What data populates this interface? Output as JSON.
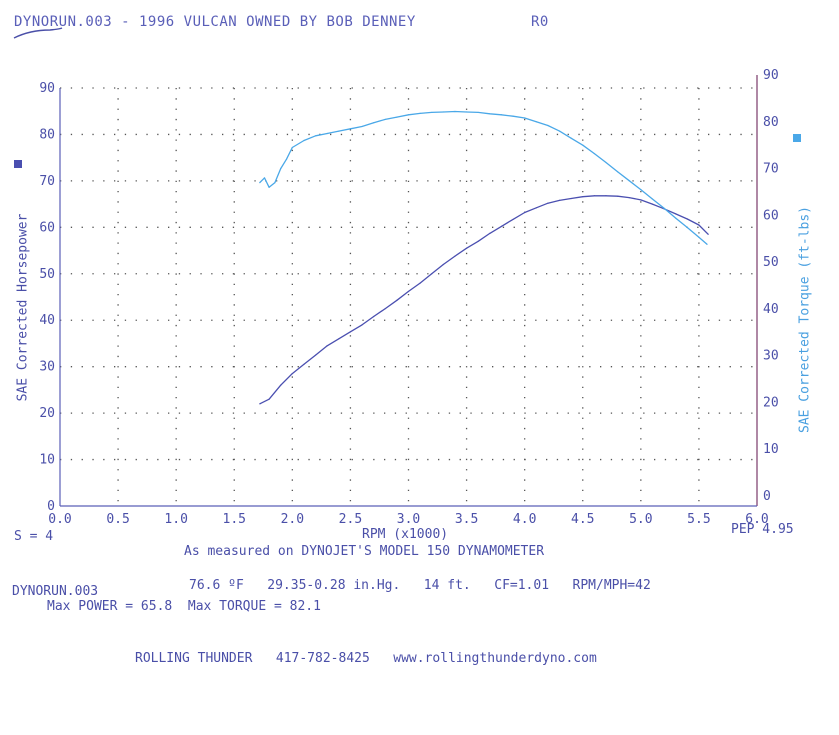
{
  "header": {
    "title": "DYNORUN.003 - 1996 VULCAN OWNED BY BOB DENNEY",
    "code": "R0"
  },
  "footer": {
    "smoothing": "S = 4",
    "pep": "PEP 4.95",
    "measured_note": "As measured on DYNOJET'S MODEL 150 DYNAMOMETER",
    "run_file": "DYNORUN.003",
    "conditions": "76.6 ºF   29.35-0.28 in.Hg.   14 ft.   CF=1.01   RPM/MPH=42",
    "max_line": "Max POWER = 65.8  Max TORQUE = 82.1",
    "shop": "ROLLING THUNDER   417-782-8425   www.rollingthunderdyno.com"
  },
  "colors": {
    "power": "#4a4fb0",
    "torque": "#4aa8e8",
    "text": "#4a4fa8",
    "grid": "#555555"
  },
  "chart_data": {
    "type": "line",
    "title": "",
    "xlabel": "RPM (x1000)",
    "ylabel_left": "SAE Corrected Horsepower",
    "ylabel_right": "SAE Corrected Torque (ft-lbs)",
    "xlim": [
      0,
      6
    ],
    "ylim_left": [
      0,
      90
    ],
    "ylim_right": [
      0,
      90
    ],
    "x_ticks": [
      "0.0",
      "0.5",
      "1.0",
      "1.5",
      "2.0",
      "2.5",
      "3.0",
      "3.5",
      "4.0",
      "4.5",
      "5.0",
      "5.5",
      "6.0"
    ],
    "y_ticks": [
      "0",
      "10",
      "20",
      "30",
      "40",
      "50",
      "60",
      "70",
      "80",
      "90"
    ],
    "grid": true,
    "series": [
      {
        "key": "power",
        "axis": "left",
        "x": [
          1.72,
          1.8,
          1.9,
          2.0,
          2.1,
          2.2,
          2.3,
          2.4,
          2.5,
          2.6,
          2.7,
          2.8,
          2.9,
          3.0,
          3.1,
          3.2,
          3.3,
          3.4,
          3.5,
          3.6,
          3.7,
          3.8,
          3.9,
          4.0,
          4.1,
          4.2,
          4.3,
          4.4,
          4.5,
          4.6,
          4.7,
          4.8,
          4.9,
          5.0,
          5.1,
          5.2,
          5.3,
          5.4,
          5.5,
          5.58
        ],
        "y": [
          22.0,
          23.0,
          26.0,
          28.5,
          30.5,
          32.5,
          34.5,
          36.0,
          37.5,
          39.0,
          40.8,
          42.5,
          44.3,
          46.2,
          48.0,
          50.0,
          52.0,
          53.8,
          55.5,
          57.0,
          58.7,
          60.2,
          61.7,
          63.2,
          64.2,
          65.2,
          65.8,
          66.2,
          66.6,
          66.8,
          66.8,
          66.7,
          66.4,
          65.9,
          65.0,
          64.0,
          62.9,
          61.8,
          60.5,
          58.5
        ]
      },
      {
        "key": "torque",
        "axis": "right",
        "x": [
          1.72,
          1.76,
          1.8,
          1.85,
          1.9,
          1.95,
          2.0,
          2.1,
          2.2,
          2.3,
          2.4,
          2.5,
          2.6,
          2.7,
          2.8,
          2.9,
          3.0,
          3.1,
          3.2,
          3.3,
          3.4,
          3.5,
          3.6,
          3.7,
          3.8,
          3.9,
          4.0,
          4.1,
          4.2,
          4.3,
          4.4,
          4.5,
          4.6,
          4.7,
          4.8,
          4.9,
          5.0,
          5.1,
          5.2,
          5.3,
          5.4,
          5.5,
          5.57
        ],
        "y": [
          67.0,
          68.0,
          66.0,
          67.0,
          70.0,
          72.0,
          74.5,
          76.0,
          77.0,
          77.5,
          78.0,
          78.5,
          79.0,
          79.8,
          80.5,
          81.0,
          81.5,
          81.8,
          82.0,
          82.1,
          82.2,
          82.1,
          82.0,
          81.7,
          81.5,
          81.2,
          80.8,
          80.0,
          79.2,
          78.0,
          76.5,
          75.0,
          73.2,
          71.3,
          69.3,
          67.4,
          65.5,
          63.5,
          61.5,
          59.4,
          57.4,
          55.3,
          53.8
        ]
      }
    ]
  }
}
